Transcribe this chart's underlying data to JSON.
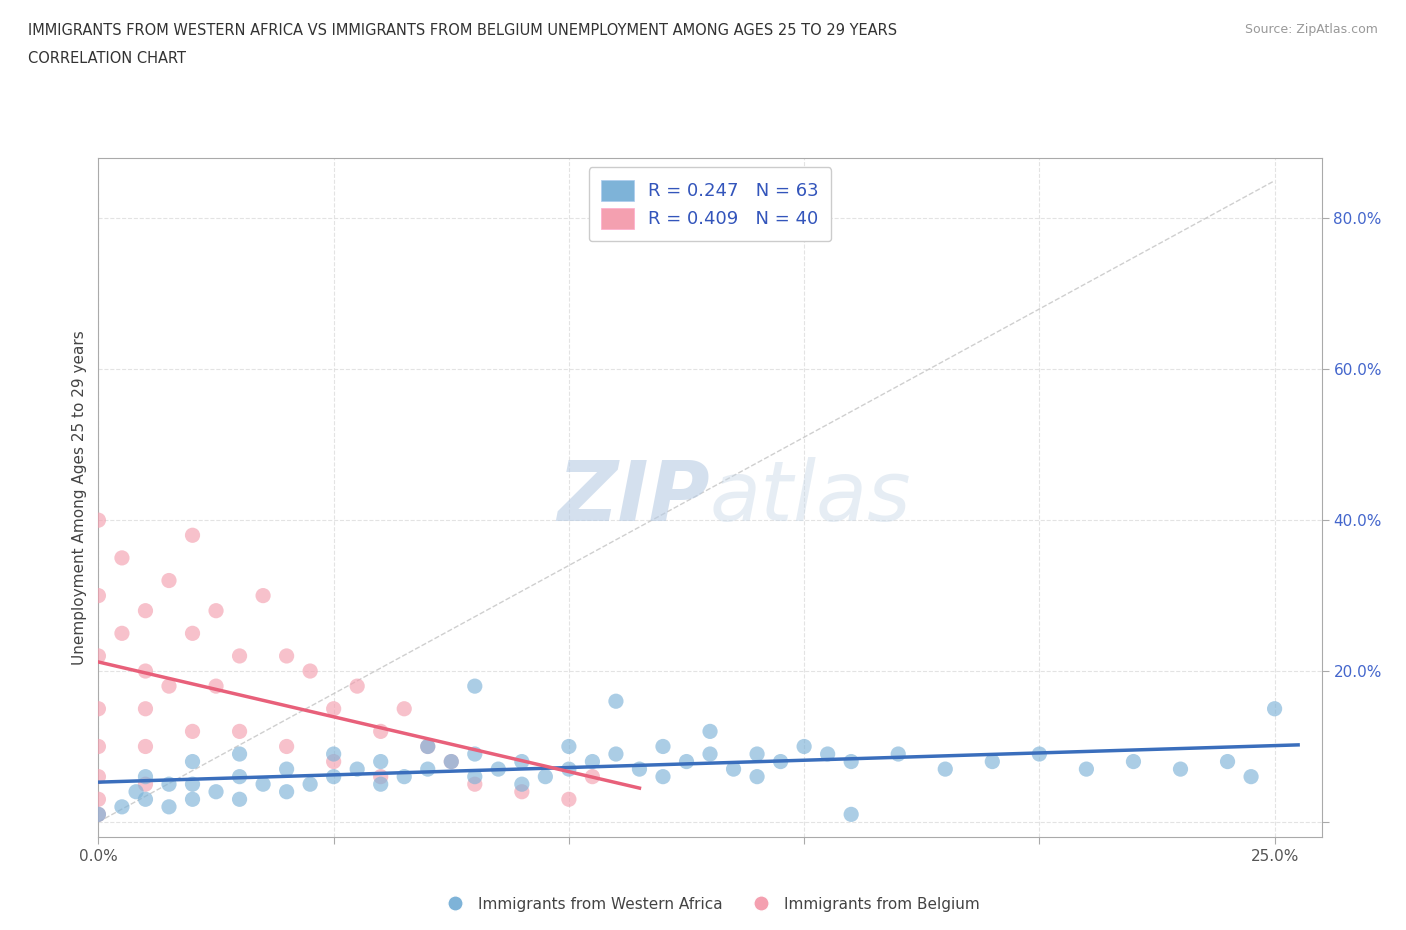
{
  "title_line1": "IMMIGRANTS FROM WESTERN AFRICA VS IMMIGRANTS FROM BELGIUM UNEMPLOYMENT AMONG AGES 25 TO 29 YEARS",
  "title_line2": "CORRELATION CHART",
  "source_text": "Source: ZipAtlas.com",
  "ylabel": "Unemployment Among Ages 25 to 29 years",
  "xlim": [
    0.0,
    0.26
  ],
  "ylim": [
    -0.02,
    0.88
  ],
  "color_blue": "#7EB3D8",
  "color_pink": "#F4A0B0",
  "color_blue_line": "#3A6EBC",
  "color_pink_line": "#E8607A",
  "color_diag": "#C8C8C8",
  "R_blue": 0.247,
  "N_blue": 63,
  "R_pink": 0.409,
  "N_pink": 40,
  "legend_label_blue": "Immigrants from Western Africa",
  "legend_label_pink": "Immigrants from Belgium",
  "watermark_zip": "ZIP",
  "watermark_atlas": "atlas",
  "blue_scatter_x": [
    0.0,
    0.005,
    0.008,
    0.01,
    0.01,
    0.015,
    0.015,
    0.02,
    0.02,
    0.02,
    0.025,
    0.03,
    0.03,
    0.03,
    0.035,
    0.04,
    0.04,
    0.045,
    0.05,
    0.05,
    0.055,
    0.06,
    0.06,
    0.065,
    0.07,
    0.07,
    0.075,
    0.08,
    0.08,
    0.085,
    0.09,
    0.09,
    0.095,
    0.1,
    0.1,
    0.105,
    0.11,
    0.115,
    0.12,
    0.12,
    0.125,
    0.13,
    0.13,
    0.135,
    0.14,
    0.14,
    0.145,
    0.15,
    0.155,
    0.16,
    0.17,
    0.18,
    0.19,
    0.2,
    0.21,
    0.22,
    0.23,
    0.24,
    0.245,
    0.25,
    0.16,
    0.11,
    0.08
  ],
  "blue_scatter_y": [
    0.01,
    0.02,
    0.04,
    0.03,
    0.06,
    0.02,
    0.05,
    0.03,
    0.05,
    0.08,
    0.04,
    0.03,
    0.06,
    0.09,
    0.05,
    0.04,
    0.07,
    0.05,
    0.06,
    0.09,
    0.07,
    0.05,
    0.08,
    0.06,
    0.07,
    0.1,
    0.08,
    0.06,
    0.09,
    0.07,
    0.05,
    0.08,
    0.06,
    0.07,
    0.1,
    0.08,
    0.09,
    0.07,
    0.06,
    0.1,
    0.08,
    0.09,
    0.12,
    0.07,
    0.09,
    0.06,
    0.08,
    0.1,
    0.09,
    0.08,
    0.09,
    0.07,
    0.08,
    0.09,
    0.07,
    0.08,
    0.07,
    0.08,
    0.06,
    0.15,
    0.01,
    0.16,
    0.18
  ],
  "pink_scatter_x": [
    0.0,
    0.0,
    0.0,
    0.0,
    0.0,
    0.0,
    0.0,
    0.0,
    0.005,
    0.005,
    0.01,
    0.01,
    0.01,
    0.01,
    0.01,
    0.015,
    0.015,
    0.02,
    0.02,
    0.02,
    0.025,
    0.025,
    0.03,
    0.03,
    0.035,
    0.04,
    0.04,
    0.045,
    0.05,
    0.05,
    0.055,
    0.06,
    0.06,
    0.065,
    0.07,
    0.075,
    0.08,
    0.09,
    0.1,
    0.105
  ],
  "pink_scatter_y": [
    0.01,
    0.03,
    0.06,
    0.1,
    0.15,
    0.22,
    0.3,
    0.4,
    0.25,
    0.35,
    0.2,
    0.28,
    0.15,
    0.1,
    0.05,
    0.32,
    0.18,
    0.25,
    0.38,
    0.12,
    0.28,
    0.18,
    0.22,
    0.12,
    0.3,
    0.22,
    0.1,
    0.2,
    0.15,
    0.08,
    0.18,
    0.12,
    0.06,
    0.15,
    0.1,
    0.08,
    0.05,
    0.04,
    0.03,
    0.06
  ]
}
